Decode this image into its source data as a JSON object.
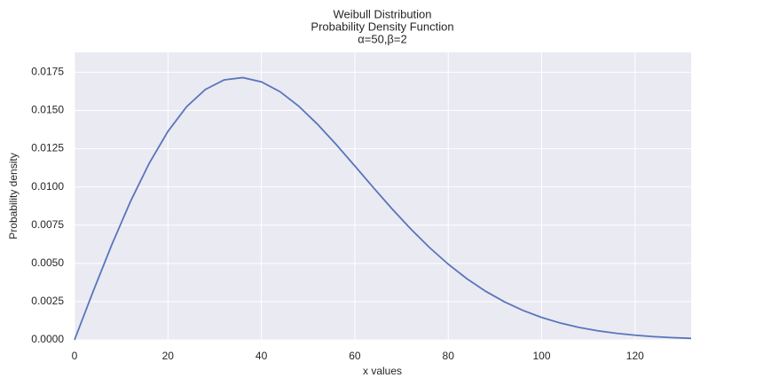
{
  "chart_data": {
    "type": "line",
    "title": "Weibull Distribution",
    "subtitle": "Probability Density Function",
    "parameters": "α=50,β=2",
    "xlabel": "x values",
    "ylabel": "Probability density",
    "x": [
      0,
      4,
      8,
      12,
      16,
      20,
      24,
      28,
      32,
      36,
      40,
      44,
      48,
      52,
      56,
      60,
      64,
      68,
      72,
      76,
      80,
      84,
      88,
      92,
      96,
      100,
      104,
      108,
      112,
      116,
      120,
      124,
      128,
      132
    ],
    "series": [
      {
        "color": "#5975bc",
        "values": [
          0,
          0.00318,
          0.006238,
          0.009063,
          0.011554,
          0.013634,
          0.015249,
          0.016371,
          0.016996,
          0.01715,
          0.016873,
          0.016227,
          0.01528,
          0.014104,
          0.012778,
          0.011373,
          0.009948,
          0.008557,
          0.007243,
          0.006033,
          0.004947,
          0.003996,
          0.003179,
          0.002491,
          0.001925,
          0.001465,
          0.001099,
          0.000813,
          0.000593,
          0.000427,
          0.000303,
          0.000212,
          0.000146,
          9.9e-05
        ]
      }
    ],
    "xlim": [
      0,
      132
    ],
    "ylim": [
      0,
      0.0188
    ],
    "xticks": [
      0,
      20,
      40,
      60,
      80,
      100,
      120
    ],
    "yticks": [
      {
        "value": 0,
        "label": "0.0000"
      },
      {
        "value": 0.0025,
        "label": "0.0025"
      },
      {
        "value": 0.005,
        "label": "0.0050"
      },
      {
        "value": 0.0075,
        "label": "0.0075"
      },
      {
        "value": 0.01,
        "label": "0.0100"
      },
      {
        "value": 0.0125,
        "label": "0.0125"
      },
      {
        "value": 0.015,
        "label": "0.0150"
      },
      {
        "value": 0.0175,
        "label": "0.0175"
      }
    ],
    "grid": true,
    "background": "#eaeaf2"
  }
}
